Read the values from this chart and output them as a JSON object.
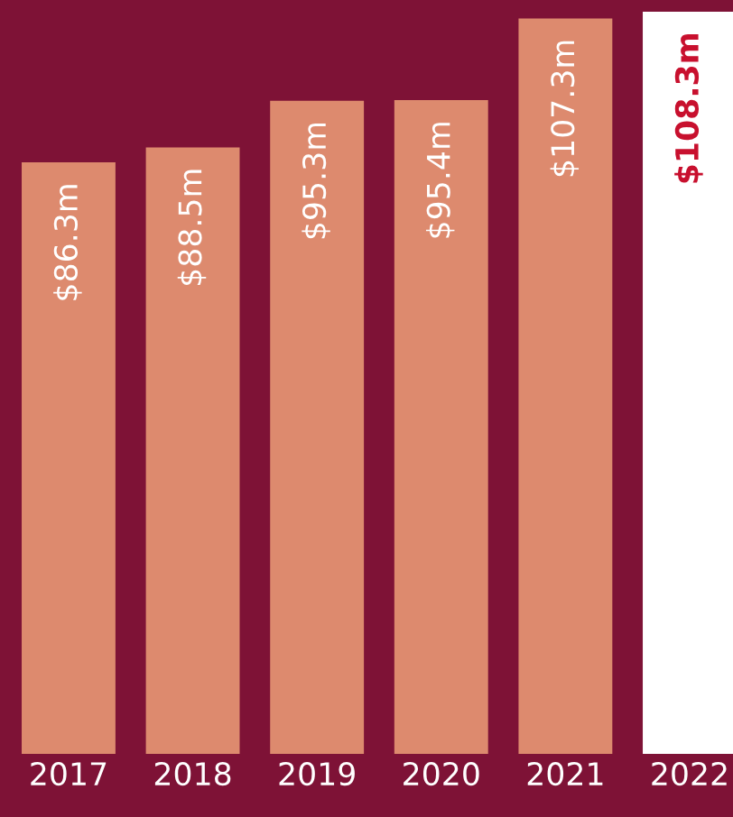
{
  "chart_data": {
    "type": "bar",
    "categories": [
      "2017",
      "2018",
      "2019",
      "2020",
      "2021",
      "2022"
    ],
    "values": [
      86.3,
      88.5,
      95.3,
      95.4,
      107.3,
      108.3
    ],
    "colors": [
      "#dd8a6e",
      "#dd8a6e",
      "#dd8a6e",
      "#dd8a6e",
      "#dd8a6e",
      "#ffffff"
    ],
    "value_labels": [
      "$86.3m",
      "$88.5m",
      "$95.3m",
      "$95.4m",
      "$107.3m",
      "$108.3m"
    ],
    "ylim": [
      0,
      110
    ],
    "grid": false,
    "legend": false
  }
}
